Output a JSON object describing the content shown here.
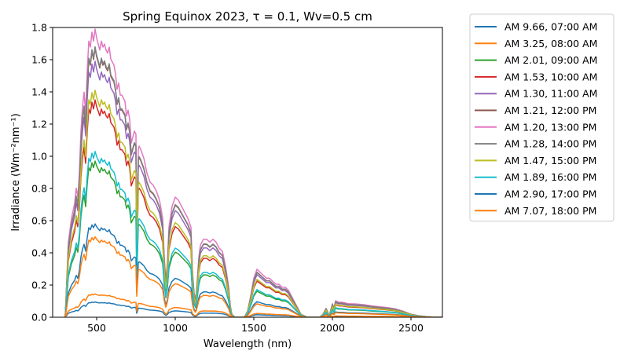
{
  "chart_data": {
    "type": "line",
    "title": "Spring Equinox 2023, τ = 0.1, Wv=0.5 cm",
    "xlabel": "Wavelength (nm)",
    "ylabel": "Irradiance (Wm⁻²nm⁻¹)",
    "xlim": [
      220,
      2700
    ],
    "ylim": [
      0,
      1.8
    ],
    "xticks": [
      500,
      1000,
      1500,
      2000,
      2500
    ],
    "yticks": [
      0.0,
      0.2,
      0.4,
      0.6,
      0.8,
      1.0,
      1.2,
      1.4,
      1.6,
      1.8
    ],
    "grid": false,
    "legend_position": "outside-right",
    "spectrum_profile": {
      "x": [
        300,
        320,
        340,
        360,
        370,
        380,
        390,
        400,
        410,
        420,
        430,
        440,
        450,
        460,
        470,
        480,
        490,
        500,
        510,
        520,
        530,
        540,
        550,
        560,
        570,
        580,
        590,
        600,
        610,
        620,
        630,
        640,
        650,
        660,
        670,
        680,
        690,
        700,
        710,
        720,
        730,
        740,
        750,
        755,
        760,
        765,
        770,
        780,
        800,
        820,
        840,
        860,
        880,
        900,
        920,
        930,
        940,
        950,
        960,
        980,
        1000,
        1020,
        1040,
        1060,
        1080,
        1100,
        1110,
        1120,
        1130,
        1140,
        1150,
        1160,
        1180,
        1200,
        1220,
        1240,
        1260,
        1280,
        1300,
        1320,
        1340,
        1350,
        1360,
        1380,
        1400,
        1420,
        1440,
        1460,
        1480,
        1500,
        1520,
        1540,
        1560,
        1580,
        1600,
        1620,
        1640,
        1660,
        1680,
        1700,
        1720,
        1740,
        1760,
        1780,
        1800,
        1820,
        1840,
        1860,
        1880,
        1900,
        1920,
        1940,
        1960,
        1980,
        2000,
        2010,
        2020,
        2040,
        2060,
        2080,
        2100,
        2150,
        2200,
        2250,
        2300,
        2350,
        2400,
        2450,
        2500,
        2550,
        2600,
        2650,
        2700
      ],
      "relative_irradiance": [
        0.0,
        0.25,
        0.33,
        0.38,
        0.43,
        0.4,
        0.48,
        0.62,
        0.7,
        0.75,
        0.68,
        0.82,
        0.92,
        0.9,
        0.95,
        0.92,
        0.96,
        0.93,
        0.91,
        0.89,
        0.92,
        0.9,
        0.91,
        0.89,
        0.88,
        0.9,
        0.86,
        0.85,
        0.84,
        0.81,
        0.76,
        0.78,
        0.74,
        0.74,
        0.73,
        0.72,
        0.67,
        0.69,
        0.66,
        0.58,
        0.6,
        0.62,
        0.61,
        0.25,
        0.4,
        0.56,
        0.57,
        0.56,
        0.53,
        0.48,
        0.45,
        0.44,
        0.42,
        0.39,
        0.33,
        0.2,
        0.12,
        0.18,
        0.3,
        0.37,
        0.4,
        0.39,
        0.37,
        0.35,
        0.33,
        0.3,
        0.15,
        0.08,
        0.06,
        0.12,
        0.2,
        0.24,
        0.26,
        0.26,
        0.25,
        0.26,
        0.25,
        0.23,
        0.22,
        0.17,
        0.1,
        0.04,
        0.01,
        0.0,
        0.0,
        0.0,
        0.0,
        0.02,
        0.07,
        0.13,
        0.16,
        0.15,
        0.14,
        0.13,
        0.13,
        0.12,
        0.11,
        0.11,
        0.1,
        0.1,
        0.09,
        0.07,
        0.05,
        0.03,
        0.01,
        0.005,
        0.0,
        0.0,
        0.0,
        0.0,
        0.0,
        0.01,
        0.03,
        0.005,
        0.045,
        0.03,
        0.055,
        0.05,
        0.05,
        0.048,
        0.045,
        0.044,
        0.042,
        0.038,
        0.035,
        0.032,
        0.028,
        0.02,
        0.01,
        0.005,
        0.002,
        0.0,
        0.0
      ]
    },
    "series": [
      {
        "name": "AM 9.66, 07:00 AM",
        "color": "#1f77b4",
        "peak": 0.095
      },
      {
        "name": "AM 3.25, 08:00 AM",
        "color": "#ff7f0e",
        "peak": 0.145
      },
      {
        "name": "AM 2.01, 09:00 AM",
        "color": "#2ca02c",
        "peak": 0.97
      },
      {
        "name": "AM 1.53, 10:00 AM",
        "color": "#d62728",
        "peak": 1.35
      },
      {
        "name": "AM 1.30, 11:00 AM",
        "color": "#9467bd",
        "peak": 1.59
      },
      {
        "name": "AM 1.21, 12:00 PM",
        "color": "#8c564b",
        "peak": 1.67
      },
      {
        "name": "AM 1.20, 13:00 PM",
        "color": "#e377c2",
        "peak": 1.79
      },
      {
        "name": "AM 1.28, 14:00 PM",
        "color": "#7f7f7f",
        "peak": 1.68
      },
      {
        "name": "AM 1.47, 15:00 PM",
        "color": "#bcbd22",
        "peak": 1.41
      },
      {
        "name": "AM 1.89, 16:00 PM",
        "color": "#17becf",
        "peak": 1.03
      },
      {
        "name": "AM 2.90, 17:00 PM",
        "color": "#1f77b4",
        "peak": 0.58
      },
      {
        "name": "AM 7.07, 18:00 PM",
        "color": "#ff7f0e",
        "peak": 0.5
      }
    ]
  }
}
